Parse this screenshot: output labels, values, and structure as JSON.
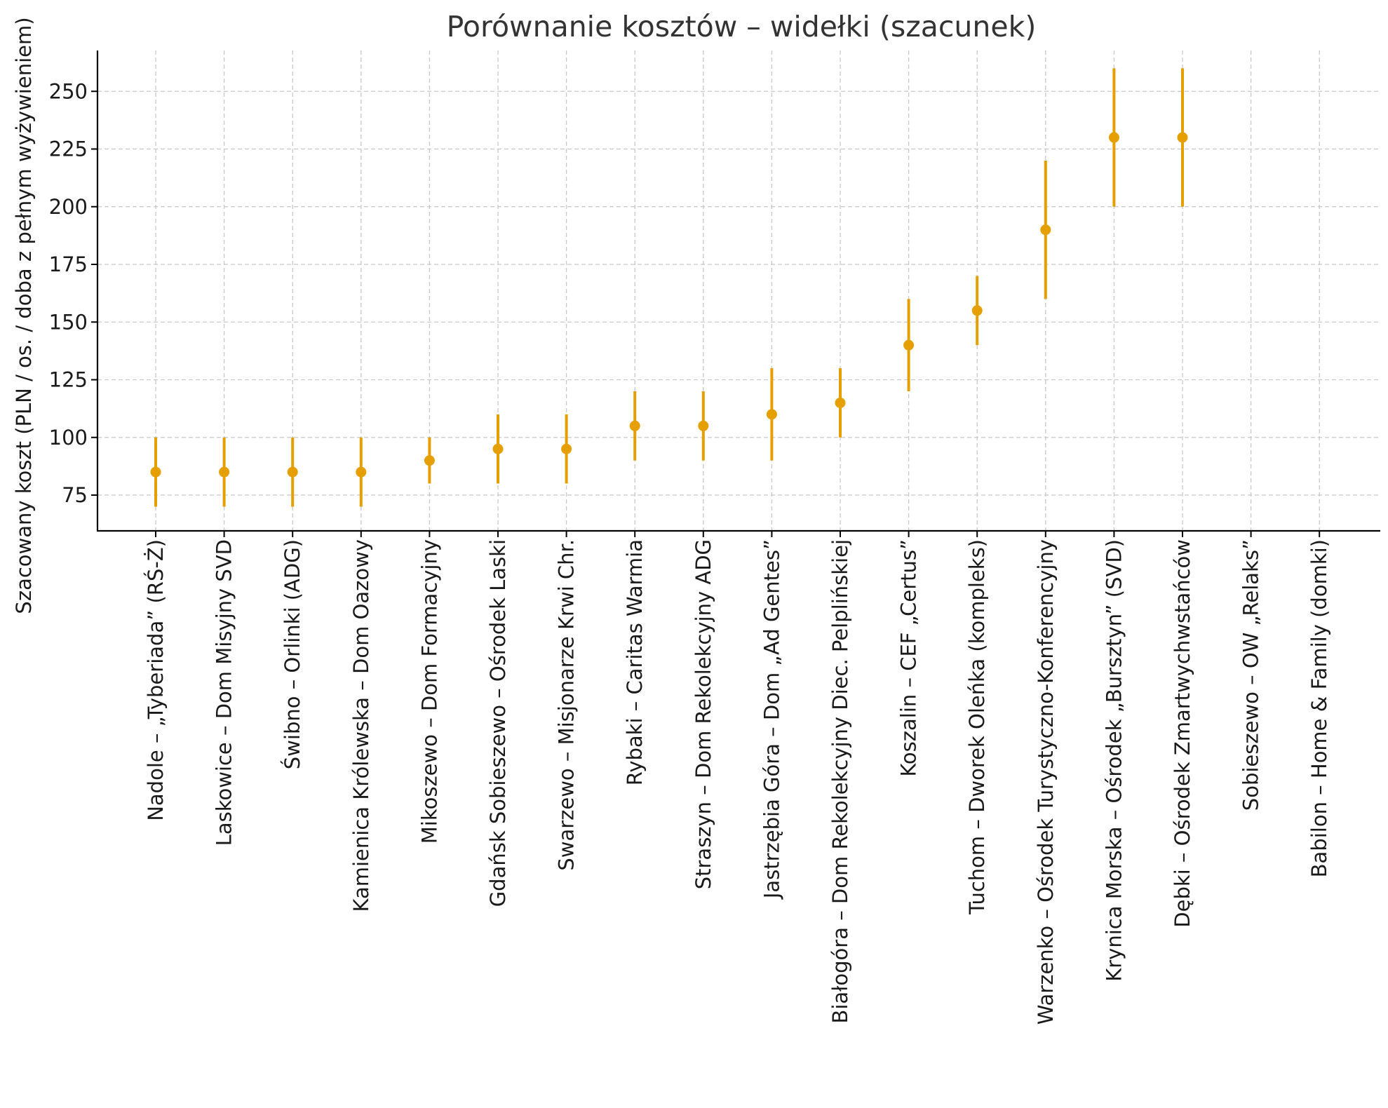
{
  "chart_data": {
    "type": "scatter",
    "title": "Porównanie kosztów – widełki (szacunek)",
    "xlabel": "",
    "ylabel": "Szacowany koszt (PLN / os. / doba z pełnym wyżywieniem)",
    "ylim": [
      60,
      270
    ],
    "yticks": [
      75,
      100,
      125,
      150,
      175,
      200,
      225,
      250
    ],
    "grid": true,
    "colors": {
      "marker": "#E69F00",
      "grid": "#c8c8c8",
      "text": "#1a1a1a",
      "title": "#333333"
    },
    "categories": [
      "Nadole – „Tyberiada” (RŚ-Ż)",
      "Laskowice – Dom Misyjny SVD",
      "Świbno – Orlinki (ADG)",
      "Kamienica Królewska – Dom Oazowy",
      "Mikoszewo – Dom Formacyjny",
      "Gdańsk Sobieszewo – Ośrodek Laski",
      "Swarzewo – Misjonarze Krwi Chr.",
      "Rybaki – Caritas Warmia",
      "Straszyn – Dom Rekolekcyjny ADG",
      "Jastrzębia Góra – Dom „Ad Gentes”",
      "Białogóra – Dom Rekolekcyjny Diec. Pelplińskiej",
      "Koszalin – CEF „Certus”",
      "Tuchom – Dworek Oleńka (kompleks)",
      "Warzenko – Ośrodek Turystyczno-Konferencyjny",
      "Krynica Morska – Ośrodek „Bursztyn” (SVD)",
      "Dębki – Ośrodek Zmartwychwstańców",
      "Sobieszewo – OW „Relaks”",
      "Babilon – Home & Family (domki)"
    ],
    "values": [
      85,
      85,
      85,
      85,
      90,
      95,
      95,
      105,
      105,
      110,
      115,
      140,
      155,
      190,
      230,
      230,
      null,
      null
    ],
    "low": [
      70,
      70,
      70,
      70,
      80,
      80,
      80,
      90,
      90,
      90,
      100,
      120,
      140,
      160,
      200,
      200,
      null,
      null
    ],
    "high": [
      100,
      100,
      100,
      100,
      100,
      110,
      110,
      120,
      120,
      130,
      130,
      160,
      170,
      220,
      260,
      260,
      null,
      null
    ]
  }
}
